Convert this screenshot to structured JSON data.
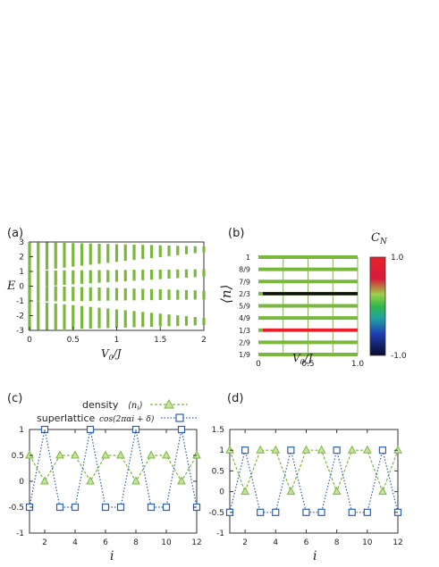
{
  "chart_data": [
    {
      "panel": "(a)",
      "type": "scatter",
      "xlabel": "V_0/J",
      "ylabel": "E",
      "xlim": [
        0,
        2
      ],
      "ylim": [
        -3,
        3
      ],
      "xticks": [
        "0",
        "0.5",
        "1",
        "1.5",
        "2"
      ],
      "yticks": [
        "3",
        "2",
        "1",
        "0",
        "-1",
        "-2",
        "-3"
      ],
      "color": "#79b83c",
      "v_step": 0.1,
      "bands": [
        {
          "v": [
            0,
            2
          ],
          "center": [
            2.0,
            2.5
          ],
          "half_width": [
            1.0,
            0.2
          ]
        },
        {
          "v": [
            0,
            2
          ],
          "center": [
            0.5,
            0.9
          ],
          "half_width": [
            0.55,
            0.25
          ]
        },
        {
          "v": [
            0,
            2
          ],
          "center": [
            -0.5,
            -0.6
          ],
          "half_width": [
            0.55,
            0.3
          ]
        },
        {
          "v": [
            0,
            2
          ],
          "center": [
            -2.0,
            -2.4
          ],
          "half_width": [
            1.0,
            0.25
          ]
        }
      ]
    },
    {
      "panel": "(b)",
      "type": "heatmap",
      "xlabel": "V_0/J",
      "ylabel": "⟨n⟩",
      "xlim": [
        0,
        1
      ],
      "xticks": [
        "0",
        "0.5",
        "1.0"
      ],
      "rows": [
        {
          "label": "1",
          "chern": 0
        },
        {
          "label": "8/9",
          "chern": 0
        },
        {
          "label": "7/9",
          "chern": 0
        },
        {
          "label": "2/3",
          "chern": -1
        },
        {
          "label": "5/9",
          "chern": 0
        },
        {
          "label": "4/9",
          "chern": 0
        },
        {
          "label": "1/3",
          "chern": 1
        },
        {
          "label": "2/9",
          "chern": 0
        },
        {
          "label": "1/9",
          "chern": 0
        }
      ],
      "colorbar": {
        "title": "C_N",
        "max": "1.0",
        "min": "-1.0"
      },
      "colors": {
        "zero": "#79b83c",
        "plus": "#e8202a",
        "minus": "#111111",
        "grid": "#6a9a3a"
      }
    },
    {
      "panel": "(c)",
      "type": "line",
      "xlabel": "i",
      "xlim": [
        1,
        12
      ],
      "ylim": [
        -1,
        1
      ],
      "xticks": [
        "2",
        "4",
        "6",
        "8",
        "10",
        "12"
      ],
      "yticks": [
        "1",
        "0.5",
        "0",
        "-0.5",
        "-1"
      ],
      "x": [
        1,
        2,
        3,
        4,
        5,
        6,
        7,
        8,
        9,
        10,
        11,
        12
      ],
      "series": [
        {
          "name": "density",
          "math": "⟨n_i⟩",
          "marker": "triangle",
          "color": "#79b83c",
          "values": [
            0.5,
            0.0,
            0.5,
            0.5,
            0.0,
            0.5,
            0.5,
            0.0,
            0.5,
            0.5,
            0.0,
            0.5
          ]
        },
        {
          "name": "superlattice",
          "math": "cos(2παi + δ)",
          "marker": "square",
          "color": "#2e5fb0",
          "values": [
            -0.5,
            1.0,
            -0.5,
            -0.5,
            1.0,
            -0.5,
            -0.5,
            1.0,
            -0.5,
            -0.5,
            1.0,
            -0.5
          ]
        }
      ]
    },
    {
      "panel": "(d)",
      "type": "line",
      "xlabel": "i",
      "xlim": [
        1,
        12
      ],
      "ylim": [
        -1,
        1.5
      ],
      "xticks": [
        "2",
        "4",
        "6",
        "8",
        "10",
        "12"
      ],
      "yticks": [
        "1.5",
        "1",
        "0.5",
        "0",
        "-0.5",
        "-1"
      ],
      "x": [
        1,
        2,
        3,
        4,
        5,
        6,
        7,
        8,
        9,
        10,
        11,
        12
      ],
      "series": [
        {
          "marker": "triangle",
          "color": "#79b83c",
          "values": [
            1.0,
            0.0,
            1.0,
            1.0,
            0.0,
            1.0,
            1.0,
            0.0,
            1.0,
            1.0,
            0.0,
            1.0
          ]
        },
        {
          "marker": "square",
          "color": "#2e5fb0",
          "values": [
            -0.5,
            1.0,
            -0.5,
            -0.5,
            1.0,
            -0.5,
            -0.5,
            1.0,
            -0.5,
            -0.5,
            1.0,
            -0.5
          ]
        }
      ]
    }
  ],
  "legend": {
    "density": "density",
    "superlattice": "superlattice"
  }
}
